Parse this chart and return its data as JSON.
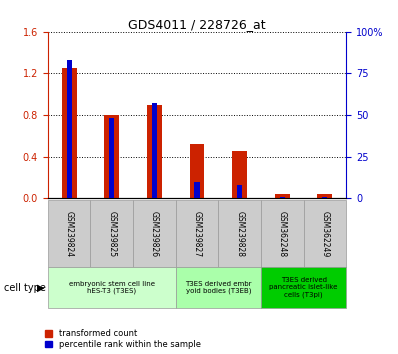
{
  "title": "GDS4011 / 228726_at",
  "samples": [
    "GSM239824",
    "GSM239825",
    "GSM239826",
    "GSM239827",
    "GSM239828",
    "GSM362248",
    "GSM362249"
  ],
  "transformed_count": [
    1.25,
    0.8,
    0.9,
    0.52,
    0.45,
    0.04,
    0.04
  ],
  "percentile_rank": [
    83,
    48,
    57,
    10,
    8,
    1,
    1
  ],
  "left_ylim": [
    0,
    1.6
  ],
  "right_ylim": [
    0,
    100
  ],
  "left_yticks": [
    0,
    0.4,
    0.8,
    1.2,
    1.6
  ],
  "right_yticks": [
    0,
    25,
    50,
    75,
    100
  ],
  "right_yticklabels": [
    "0",
    "25",
    "50",
    "75",
    "100%"
  ],
  "bar_color_red": "#cc2200",
  "bar_color_blue": "#0000cc",
  "group_configs": [
    {
      "start": 0,
      "end": 3,
      "label": "embryonic stem cell line\nhES-T3 (T3ES)",
      "color": "#ccffcc"
    },
    {
      "start": 3,
      "end": 5,
      "label": "T3ES derived embr\nyoid bodies (T3EB)",
      "color": "#aaffaa"
    },
    {
      "start": 5,
      "end": 7,
      "label": "T3ES derived\npancreatic islet-like\ncells (T3pi)",
      "color": "#00cc00"
    }
  ],
  "cell_type_label": "cell type",
  "legend_red": "transformed count",
  "legend_blue": "percentile rank within the sample",
  "red_bar_width": 0.35,
  "blue_bar_width": 0.12,
  "tick_label_color_left": "#cc2200",
  "tick_label_color_right": "#0000cc",
  "bg_color_xtick": "#cccccc",
  "title_fontsize": 9
}
